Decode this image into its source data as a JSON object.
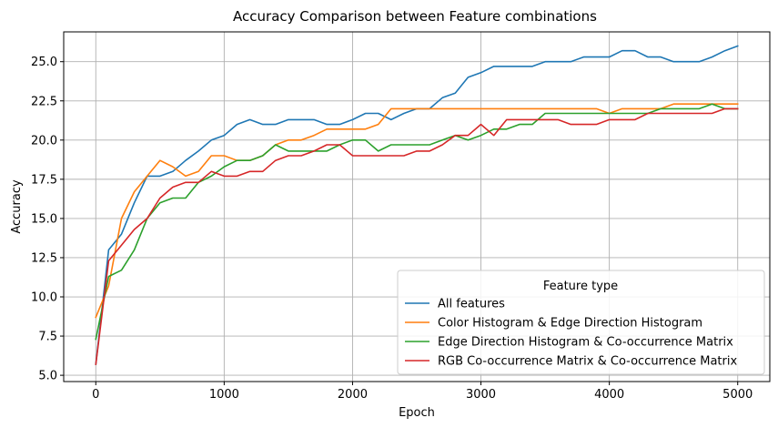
{
  "chart_data": {
    "type": "line",
    "title": "Accuracy Comparison between Feature combinations",
    "xlabel": "Epoch",
    "ylabel": "Accuracy",
    "xlim": [
      -250,
      5250
    ],
    "ylim": [
      4.6,
      26.9
    ],
    "xticks": [
      0,
      1000,
      2000,
      3000,
      4000,
      5000
    ],
    "xtick_labels": [
      "0",
      "1000",
      "2000",
      "3000",
      "4000",
      "5000"
    ],
    "yticks": [
      5.0,
      7.5,
      10.0,
      12.5,
      15.0,
      17.5,
      20.0,
      22.5,
      25.0
    ],
    "ytick_labels": [
      "5.0",
      "7.5",
      "10.0",
      "12.5",
      "15.0",
      "17.5",
      "20.0",
      "22.5",
      "25.0"
    ],
    "grid": true,
    "legend_title": "Feature type",
    "legend_placement": "lower-right",
    "x": [
      0,
      100,
      200,
      300,
      400,
      500,
      600,
      700,
      800,
      900,
      1000,
      1100,
      1200,
      1300,
      1400,
      1500,
      1600,
      1700,
      1800,
      1900,
      2000,
      2100,
      2200,
      2300,
      2400,
      2500,
      2600,
      2700,
      2800,
      2900,
      3000,
      3100,
      3200,
      3300,
      3400,
      3500,
      3600,
      3700,
      3800,
      3900,
      4000,
      4100,
      4200,
      4300,
      4400,
      4500,
      4600,
      4700,
      4800,
      4900,
      5000
    ],
    "series": [
      {
        "name": "All features",
        "color": "#1f77b4",
        "values": [
          5.7,
          13.0,
          14.0,
          16.0,
          17.7,
          17.7,
          18.0,
          18.7,
          19.3,
          20.0,
          20.3,
          21.0,
          21.3,
          21.0,
          21.0,
          21.3,
          21.3,
          21.3,
          21.0,
          21.0,
          21.3,
          21.7,
          21.7,
          21.3,
          21.7,
          22.0,
          22.0,
          22.7,
          23.0,
          24.0,
          24.3,
          24.7,
          24.7,
          24.7,
          24.7,
          25.0,
          25.0,
          25.0,
          25.3,
          25.3,
          25.3,
          25.7,
          25.7,
          25.3,
          25.3,
          25.0,
          25.0,
          25.0,
          25.3,
          25.7,
          26.0
        ]
      },
      {
        "name": "Color Histogram & Edge Direction Histogram",
        "color": "#ff7f0e",
        "values": [
          8.7,
          10.7,
          15.0,
          16.7,
          17.7,
          18.7,
          18.3,
          17.7,
          18.0,
          19.0,
          19.0,
          18.7,
          18.7,
          19.0,
          19.7,
          20.0,
          20.0,
          20.3,
          20.7,
          20.7,
          20.7,
          20.7,
          21.0,
          22.0,
          22.0,
          22.0,
          22.0,
          22.0,
          22.0,
          22.0,
          22.0,
          22.0,
          22.0,
          22.0,
          22.0,
          22.0,
          22.0,
          22.0,
          22.0,
          22.0,
          21.7,
          22.0,
          22.0,
          22.0,
          22.0,
          22.3,
          22.3,
          22.3,
          22.3,
          22.3,
          22.3
        ]
      },
      {
        "name": "Edge Direction Histogram & Co-occurrence Matrix",
        "color": "#2ca02c",
        "values": [
          7.3,
          11.3,
          11.7,
          13.0,
          15.0,
          16.0,
          16.3,
          16.3,
          17.3,
          17.7,
          18.3,
          18.7,
          18.7,
          19.0,
          19.7,
          19.3,
          19.3,
          19.3,
          19.3,
          19.7,
          20.0,
          20.0,
          19.3,
          19.7,
          19.7,
          19.7,
          19.7,
          20.0,
          20.3,
          20.0,
          20.3,
          20.7,
          20.7,
          21.0,
          21.0,
          21.7,
          21.7,
          21.7,
          21.7,
          21.7,
          21.7,
          21.7,
          21.7,
          21.7,
          22.0,
          22.0,
          22.0,
          22.0,
          22.3,
          22.0,
          22.0
        ]
      },
      {
        "name": "RGB Co-occurrence Matrix & Co-occurrence Matrix",
        "color": "#d62728",
        "values": [
          5.7,
          12.3,
          13.3,
          14.3,
          15.0,
          16.3,
          17.0,
          17.3,
          17.3,
          18.0,
          17.7,
          17.7,
          18.0,
          18.0,
          18.7,
          19.0,
          19.0,
          19.3,
          19.7,
          19.7,
          19.0,
          19.0,
          19.0,
          19.0,
          19.0,
          19.3,
          19.3,
          19.7,
          20.3,
          20.3,
          21.0,
          20.3,
          21.3,
          21.3,
          21.3,
          21.3,
          21.3,
          21.0,
          21.0,
          21.0,
          21.3,
          21.3,
          21.3,
          21.7,
          21.7,
          21.7,
          21.7,
          21.7,
          21.7,
          22.0,
          22.0
        ]
      }
    ]
  }
}
